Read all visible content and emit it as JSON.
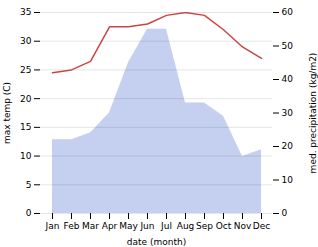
{
  "chart_data": {
    "type": "line",
    "xlabel": "date (month)",
    "ylabel": "max temp (C)",
    "y2label": "med. precipitation (kg/m2)",
    "categories": [
      "Jan",
      "Feb",
      "Mar",
      "Apr",
      "May",
      "Jun",
      "Jul",
      "Aug",
      "Sep",
      "Oct",
      "Nov",
      "Dec"
    ],
    "series": [
      {
        "type": "area",
        "axis": "y2",
        "color": "#c5d0f0",
        "values": [
          22,
          22,
          24,
          30,
          45,
          55,
          55,
          33,
          33,
          29,
          17,
          19
        ]
      },
      {
        "type": "line",
        "color": "#cc4444",
        "values": [
          24.5,
          25.0,
          26.5,
          32.5,
          32.5,
          33.0,
          34.5,
          35.0,
          34.5,
          32.0,
          29.0,
          27.0
        ]
      }
    ],
    "ylim": [
      0,
      35
    ],
    "yticks": [
      0,
      5,
      10,
      15,
      20,
      25,
      30,
      35
    ],
    "y2lim": [
      0,
      60
    ],
    "y2ticks": [
      0,
      10,
      20,
      30,
      40,
      50,
      60
    ],
    "grid": true
  }
}
